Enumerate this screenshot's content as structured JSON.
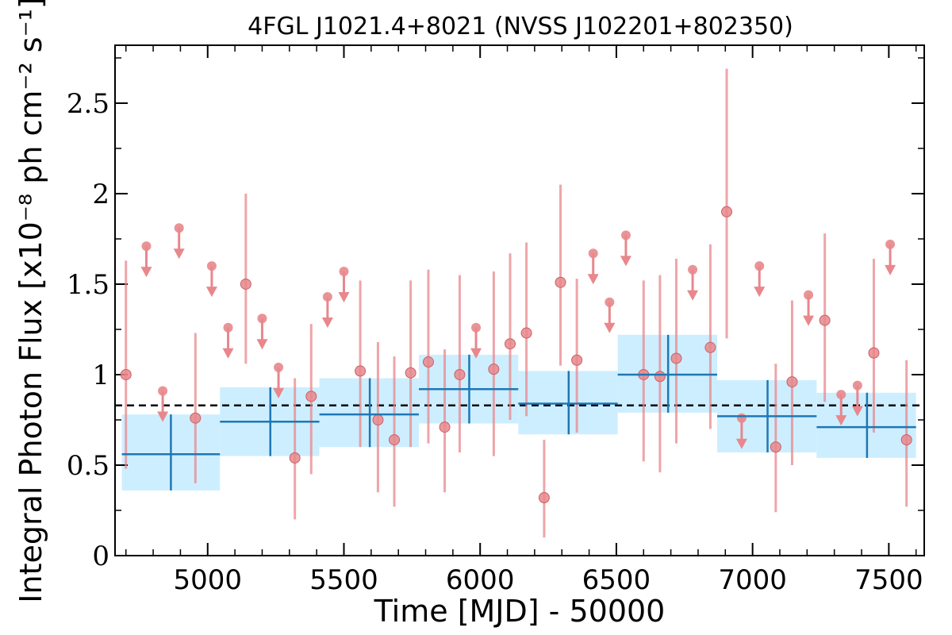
{
  "chart_data": {
    "type": "scatter",
    "title": "4FGL J1021.4+8021 (NVSS J102201+802350)",
    "xlabel": "Time [MJD] - 50000",
    "ylabel": "Integral Photon Flux [x10⁻⁸ ph cm⁻² s⁻¹]",
    "xlim": [
      4660,
      7630
    ],
    "ylim": [
      0,
      2.82
    ],
    "x_ticks": [
      5000,
      5500,
      6000,
      6500,
      7000,
      7500
    ],
    "x_tick_labels": [
      "5000",
      "5500",
      "6000",
      "6500",
      "7000",
      "7500"
    ],
    "y_ticks": [
      0,
      0.5,
      1,
      1.5,
      2,
      2.5
    ],
    "y_tick_labels": [
      "0",
      "0.5",
      "1",
      "1.5",
      "2",
      "2.5"
    ],
    "mean_flux": 0.83,
    "colors": {
      "points": "#e8878c",
      "bins": "#1f77b4",
      "band": "#cdeeff",
      "mean_line": "#000000"
    },
    "detections": [
      {
        "x": 4700,
        "y": 1.0,
        "low": 0.48,
        "high": 1.63
      },
      {
        "x": 4955,
        "y": 0.76,
        "low": 0.4,
        "high": 1.23
      },
      {
        "x": 5140,
        "y": 1.5,
        "low": 1.06,
        "high": 2.0
      },
      {
        "x": 5320,
        "y": 0.54,
        "low": 0.2,
        "high": 0.98
      },
      {
        "x": 5380,
        "y": 0.88,
        "low": 0.45,
        "high": 1.28
      },
      {
        "x": 5560,
        "y": 1.02,
        "low": 0.6,
        "high": 1.52
      },
      {
        "x": 5625,
        "y": 0.75,
        "low": 0.35,
        "high": 1.18
      },
      {
        "x": 5685,
        "y": 0.64,
        "low": 0.27,
        "high": 1.1
      },
      {
        "x": 5745,
        "y": 1.01,
        "low": 0.6,
        "high": 1.52
      },
      {
        "x": 5810,
        "y": 1.07,
        "low": 0.62,
        "high": 1.58
      },
      {
        "x": 5870,
        "y": 0.71,
        "low": 0.35,
        "high": 1.14
      },
      {
        "x": 5925,
        "y": 1.0,
        "low": 0.57,
        "high": 1.55
      },
      {
        "x": 6050,
        "y": 1.03,
        "low": 0.55,
        "high": 1.57
      },
      {
        "x": 6110,
        "y": 1.17,
        "low": 0.75,
        "high": 1.67
      },
      {
        "x": 6170,
        "y": 1.23,
        "low": 0.77,
        "high": 1.73
      },
      {
        "x": 6235,
        "y": 0.32,
        "low": 0.1,
        "high": 0.64
      },
      {
        "x": 6295,
        "y": 1.51,
        "low": 1.05,
        "high": 2.05
      },
      {
        "x": 6355,
        "y": 1.08,
        "low": 0.68,
        "high": 1.53
      },
      {
        "x": 6600,
        "y": 1.0,
        "low": 0.52,
        "high": 1.52
      },
      {
        "x": 6660,
        "y": 0.99,
        "low": 0.46,
        "high": 1.55
      },
      {
        "x": 6720,
        "y": 1.09,
        "low": 0.62,
        "high": 1.64
      },
      {
        "x": 6845,
        "y": 1.15,
        "low": 0.7,
        "high": 1.72
      },
      {
        "x": 6905,
        "y": 1.9,
        "low": 1.2,
        "high": 2.69
      },
      {
        "x": 7085,
        "y": 0.6,
        "low": 0.24,
        "high": 1.06
      },
      {
        "x": 7145,
        "y": 0.96,
        "low": 0.5,
        "high": 1.41
      },
      {
        "x": 7265,
        "y": 1.3,
        "low": 0.85,
        "high": 1.78
      },
      {
        "x": 7445,
        "y": 1.12,
        "low": 0.68,
        "high": 1.64
      },
      {
        "x": 7565,
        "y": 0.64,
        "low": 0.27,
        "high": 1.08
      }
    ],
    "upper_limits": [
      {
        "x": 4775,
        "y": 1.71
      },
      {
        "x": 4835,
        "y": 0.91
      },
      {
        "x": 4895,
        "y": 1.81
      },
      {
        "x": 5015,
        "y": 1.6
      },
      {
        "x": 5075,
        "y": 1.26
      },
      {
        "x": 5200,
        "y": 1.31
      },
      {
        "x": 5260,
        "y": 1.04
      },
      {
        "x": 5440,
        "y": 1.43
      },
      {
        "x": 5500,
        "y": 1.57
      },
      {
        "x": 5985,
        "y": 1.26
      },
      {
        "x": 6415,
        "y": 1.67
      },
      {
        "x": 6475,
        "y": 1.4
      },
      {
        "x": 6535,
        "y": 1.77
      },
      {
        "x": 6780,
        "y": 1.58
      },
      {
        "x": 6960,
        "y": 0.76
      },
      {
        "x": 7025,
        "y": 1.6
      },
      {
        "x": 7205,
        "y": 1.44
      },
      {
        "x": 7325,
        "y": 0.89
      },
      {
        "x": 7385,
        "y": 0.94
      },
      {
        "x": 7505,
        "y": 1.72
      }
    ],
    "bins": [
      {
        "x_start": 4685,
        "x_end": 5045,
        "x_center": 4865,
        "y": 0.56,
        "y_low": 0.36,
        "y_high": 0.78
      },
      {
        "x_start": 5045,
        "x_end": 5410,
        "x_center": 5230,
        "y": 0.74,
        "y_low": 0.55,
        "y_high": 0.93
      },
      {
        "x_start": 5410,
        "x_end": 5775,
        "x_center": 5595,
        "y": 0.78,
        "y_low": 0.6,
        "y_high": 0.98
      },
      {
        "x_start": 5775,
        "x_end": 6140,
        "x_center": 5960,
        "y": 0.92,
        "y_low": 0.73,
        "y_high": 1.11
      },
      {
        "x_start": 6140,
        "x_end": 6505,
        "x_center": 6325,
        "y": 0.84,
        "y_low": 0.67,
        "y_high": 1.02
      },
      {
        "x_start": 6505,
        "x_end": 6870,
        "x_center": 6690,
        "y": 1.0,
        "y_low": 0.79,
        "y_high": 1.22
      },
      {
        "x_start": 6870,
        "x_end": 7235,
        "x_center": 7055,
        "y": 0.77,
        "y_low": 0.57,
        "y_high": 0.97
      },
      {
        "x_start": 7235,
        "x_end": 7600,
        "x_center": 7420,
        "y": 0.71,
        "y_low": 0.54,
        "y_high": 0.9
      }
    ]
  }
}
